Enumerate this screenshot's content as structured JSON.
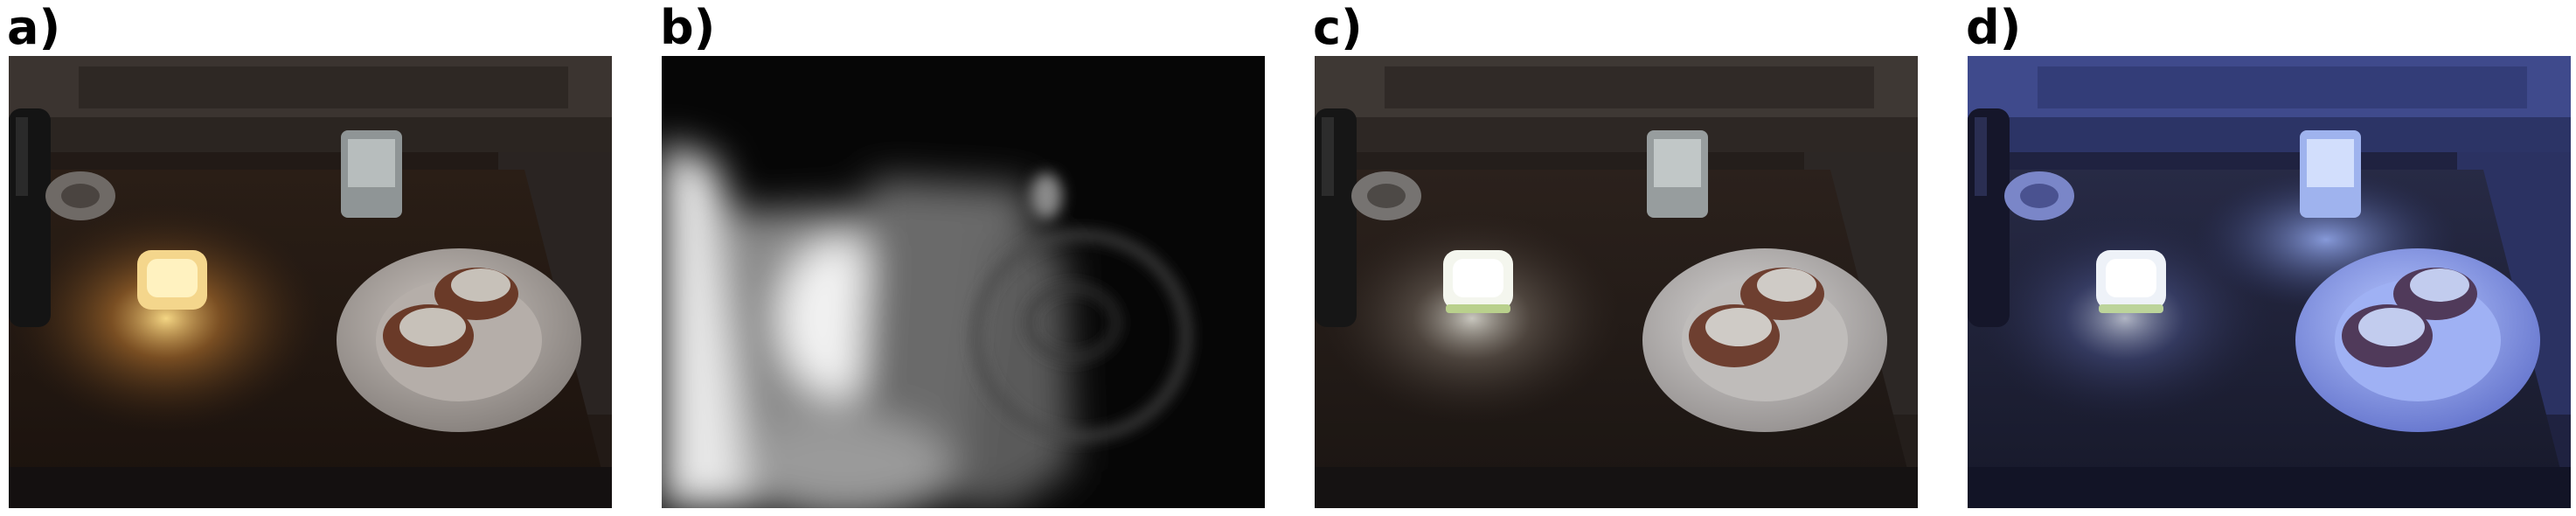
{
  "panels": [
    {
      "label": "a)",
      "depicts": "table-scene-warm-candlelight",
      "tint": "#c88a4a"
    },
    {
      "label": "b)",
      "depicts": "grayscale-illumination-map",
      "tint": "#ffffff"
    },
    {
      "label": "c)",
      "depicts": "table-scene-white-balanced",
      "tint": "#e6e6e6"
    },
    {
      "label": "d)",
      "depicts": "table-scene-blue-cast",
      "tint": "#6f86ff"
    }
  ]
}
